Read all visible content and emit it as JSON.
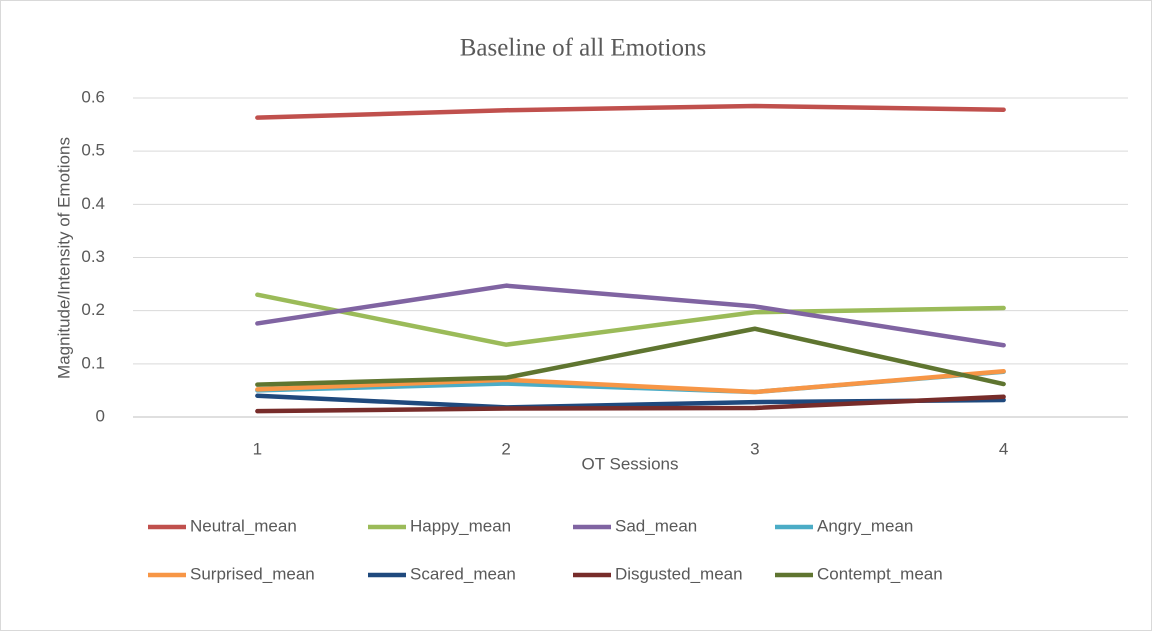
{
  "chart_data": {
    "type": "line",
    "title": "Baseline of all Emotions",
    "x_label": "OT Sessions",
    "y_label": "Magnitude/Intensity of Emotions",
    "categories": [
      "1",
      "2",
      "3",
      "4"
    ],
    "ylim": [
      0,
      0.6
    ],
    "yticks": [
      0,
      0.1,
      0.2,
      0.3,
      0.4,
      0.5,
      0.6
    ],
    "grid": true,
    "legend": "bottom",
    "series": [
      {
        "name": "Neutral_mean",
        "color": "#c0504d",
        "values": [
          0.563,
          0.577,
          0.585,
          0.578
        ]
      },
      {
        "name": "Happy_mean",
        "color": "#9bbb59",
        "values": [
          0.23,
          0.136,
          0.197,
          0.205
        ]
      },
      {
        "name": "Sad_mean",
        "color": "#8064a2",
        "values": [
          0.176,
          0.247,
          0.208,
          0.135
        ]
      },
      {
        "name": "Angry_mean",
        "color": "#4bacc6",
        "values": [
          0.05,
          0.063,
          0.047,
          0.085
        ]
      },
      {
        "name": "Surprised_mean",
        "color": "#f79646",
        "values": [
          0.052,
          0.07,
          0.047,
          0.086
        ]
      },
      {
        "name": "Scared_mean",
        "color": "#1f497d",
        "values": [
          0.04,
          0.018,
          0.028,
          0.032
        ]
      },
      {
        "name": "Disgusted_mean",
        "color": "#772c2a",
        "values": [
          0.011,
          0.016,
          0.017,
          0.038
        ]
      },
      {
        "name": "Contempt_mean",
        "color": "#5f7530",
        "values": [
          0.061,
          0.074,
          0.166,
          0.062
        ]
      }
    ]
  }
}
